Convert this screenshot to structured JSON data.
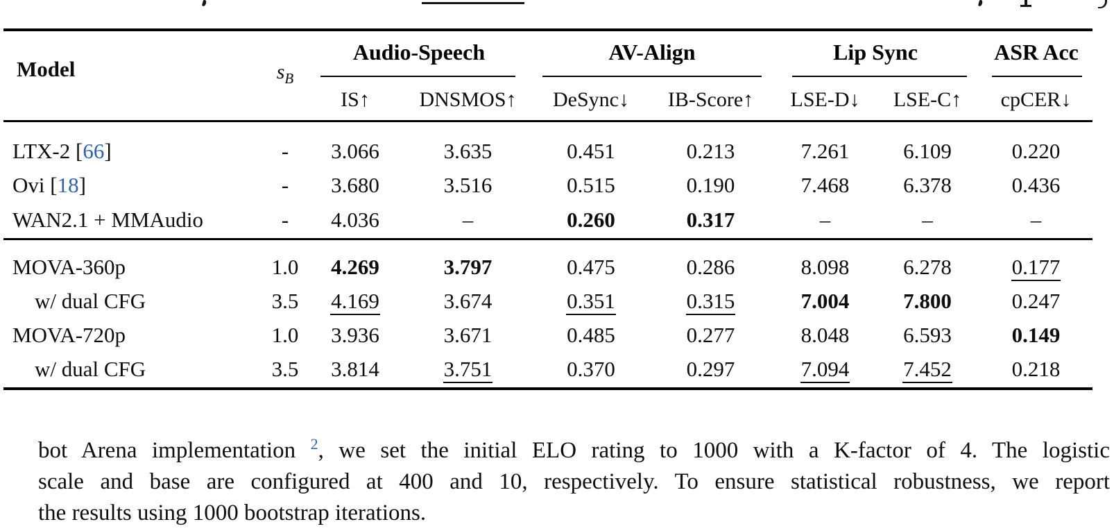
{
  "colors": {
    "link_blue": "#3060AE",
    "text": "#0D0D0D"
  },
  "table": {
    "cite_brackets": [
      "[",
      "]"
    ],
    "header": {
      "model_label": "Model",
      "sb_symbol": "s",
      "sb_subscript": "B",
      "groups": [
        {
          "label": "Audio-Speech"
        },
        {
          "label": "AV-Align"
        },
        {
          "label": "Lip Sync"
        },
        {
          "label": "ASR Acc"
        }
      ],
      "subcolumns": [
        "IS↑",
        "DNSMOS↑",
        "DeSync↓",
        "IB-Score↑",
        "LSE-D↓",
        "LSE-C↑",
        "cpCER↓"
      ]
    },
    "rows": [
      {
        "model": "LTX-2",
        "cite": "66",
        "indent": false,
        "sb": "-",
        "cells": [
          {
            "v": "3.066"
          },
          {
            "v": "3.635"
          },
          {
            "v": "0.451"
          },
          {
            "v": "0.213"
          },
          {
            "v": "7.261"
          },
          {
            "v": "6.109"
          },
          {
            "v": "0.220"
          }
        ]
      },
      {
        "model": "Ovi",
        "cite": "18",
        "indent": false,
        "sb": "-",
        "cells": [
          {
            "v": "3.680"
          },
          {
            "v": "3.516"
          },
          {
            "v": "0.515"
          },
          {
            "v": "0.190"
          },
          {
            "v": "7.468"
          },
          {
            "v": "6.378"
          },
          {
            "v": "0.436"
          }
        ]
      },
      {
        "model": "WAN2.1 + MMAudio",
        "cite": null,
        "indent": false,
        "sb": "-",
        "cells": [
          {
            "v": "4.036"
          },
          {
            "v": "–"
          },
          {
            "v": "0.260",
            "bold": true
          },
          {
            "v": "0.317",
            "bold": true
          },
          {
            "v": "–"
          },
          {
            "v": "–"
          },
          {
            "v": "–"
          }
        ]
      },
      {
        "model": "MOVA-360p",
        "cite": null,
        "indent": false,
        "sb": "1.0",
        "cells": [
          {
            "v": "4.269",
            "bold": true
          },
          {
            "v": "3.797",
            "bold": true
          },
          {
            "v": "0.475"
          },
          {
            "v": "0.286"
          },
          {
            "v": "8.098"
          },
          {
            "v": "6.278"
          },
          {
            "v": "0.177",
            "underline": true
          }
        ]
      },
      {
        "model": "w/ dual CFG",
        "cite": null,
        "indent": true,
        "sb": "3.5",
        "cells": [
          {
            "v": "4.169",
            "underline": true
          },
          {
            "v": "3.674"
          },
          {
            "v": "0.351",
            "underline": true
          },
          {
            "v": "0.315",
            "underline": true
          },
          {
            "v": "7.004",
            "bold": true
          },
          {
            "v": "7.800",
            "bold": true
          },
          {
            "v": "0.247"
          }
        ]
      },
      {
        "model": "MOVA-720p",
        "cite": null,
        "indent": false,
        "sb": "1.0",
        "cells": [
          {
            "v": "3.936"
          },
          {
            "v": "3.671"
          },
          {
            "v": "0.485"
          },
          {
            "v": "0.277"
          },
          {
            "v": "8.048"
          },
          {
            "v": "6.593"
          },
          {
            "v": "0.149",
            "bold": true
          }
        ]
      },
      {
        "model": "w/ dual CFG",
        "cite": null,
        "indent": true,
        "sb": "3.5",
        "cells": [
          {
            "v": "3.814"
          },
          {
            "v": "3.751",
            "underline": true
          },
          {
            "v": "0.370"
          },
          {
            "v": "0.297"
          },
          {
            "v": "7.094",
            "underline": true
          },
          {
            "v": "7.452",
            "underline": true
          },
          {
            "v": "0.218"
          }
        ]
      }
    ]
  },
  "paragraph": {
    "line1_pre": "bot Arena implementation ",
    "footnote_ref": "2",
    "line1_post": ", we set the initial ELO rating to 1000 with a K-factor of 4.  The logistic",
    "line2": "scale and base are configured at 400 and 10, respectively.  To ensure statistical robustness, we report",
    "line3": "the results using 1000 bootstrap iterations."
  }
}
